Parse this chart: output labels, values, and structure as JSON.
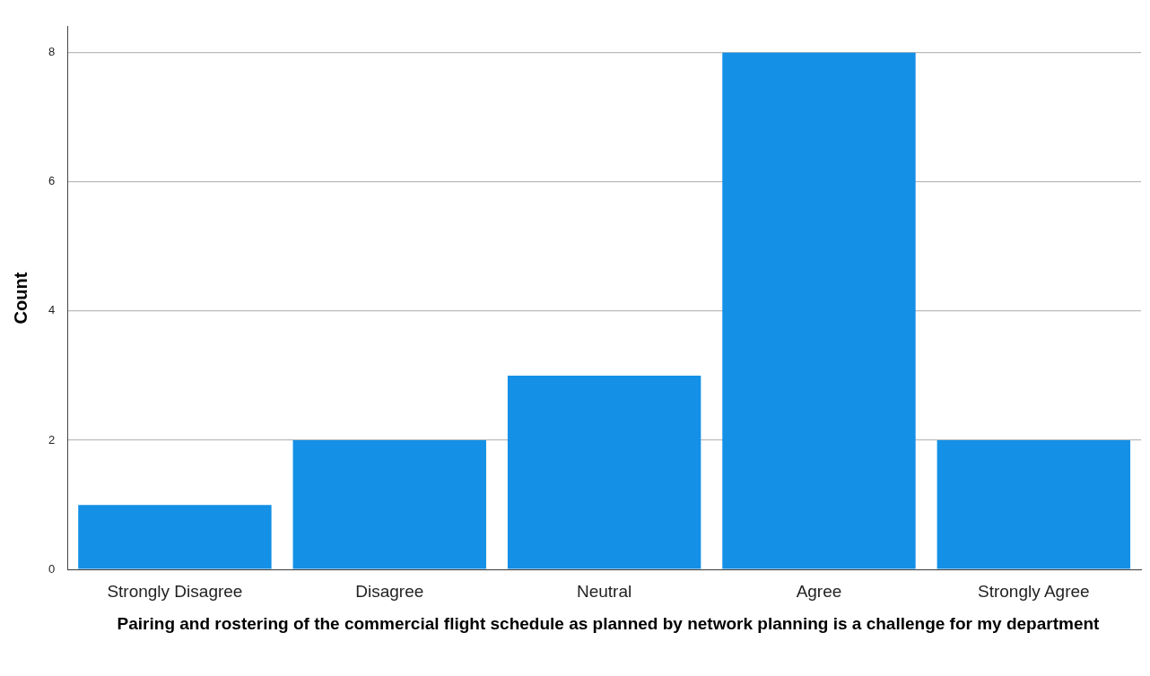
{
  "chart_data": {
    "type": "bar",
    "categories": [
      "Strongly Disagree",
      "Disagree",
      "Neutral",
      "Agree",
      "Strongly Agree"
    ],
    "values": [
      1,
      2,
      3,
      8,
      2
    ],
    "color": "#1490e6",
    "ylabel": "Count",
    "xlabel": "Pairing and rostering of the commercial flight schedule as planned by network planning is a challenge for my department",
    "ylim": [
      0,
      8.4
    ],
    "yticks": [
      0,
      2,
      4,
      6,
      8
    ],
    "grid": "y",
    "legend": false
  }
}
